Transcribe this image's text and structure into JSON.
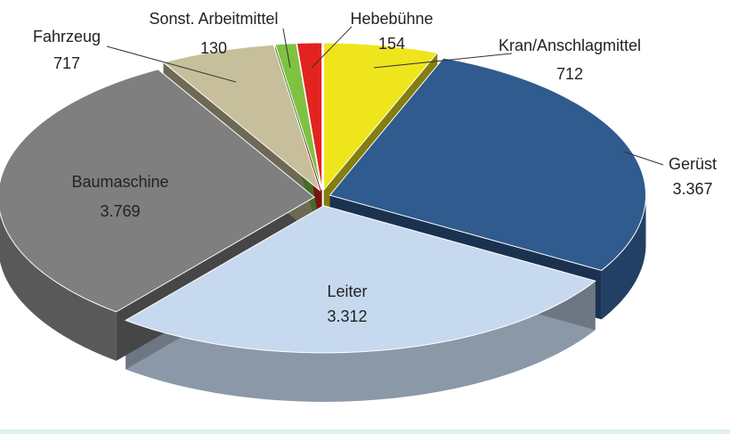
{
  "chart_data": {
    "type": "pie",
    "categories": [
      "Kran/Anschlagmittel",
      "Gerüst",
      "Leiter",
      "Baumaschine",
      "Fahrzeug",
      "Sonst. Arbeitmittel",
      "Hebebühne"
    ],
    "values": [
      712,
      3367,
      3312,
      3769,
      717,
      130,
      154
    ],
    "value_labels": [
      "712",
      "3.367",
      "3.312",
      "3.769",
      "717",
      "130",
      "154"
    ],
    "colors": [
      "#efe51c",
      "#2f5b8f",
      "#c6d9ef",
      "#7f7f7f",
      "#c7bf9b",
      "#7fc241",
      "#e3231f"
    ]
  }
}
